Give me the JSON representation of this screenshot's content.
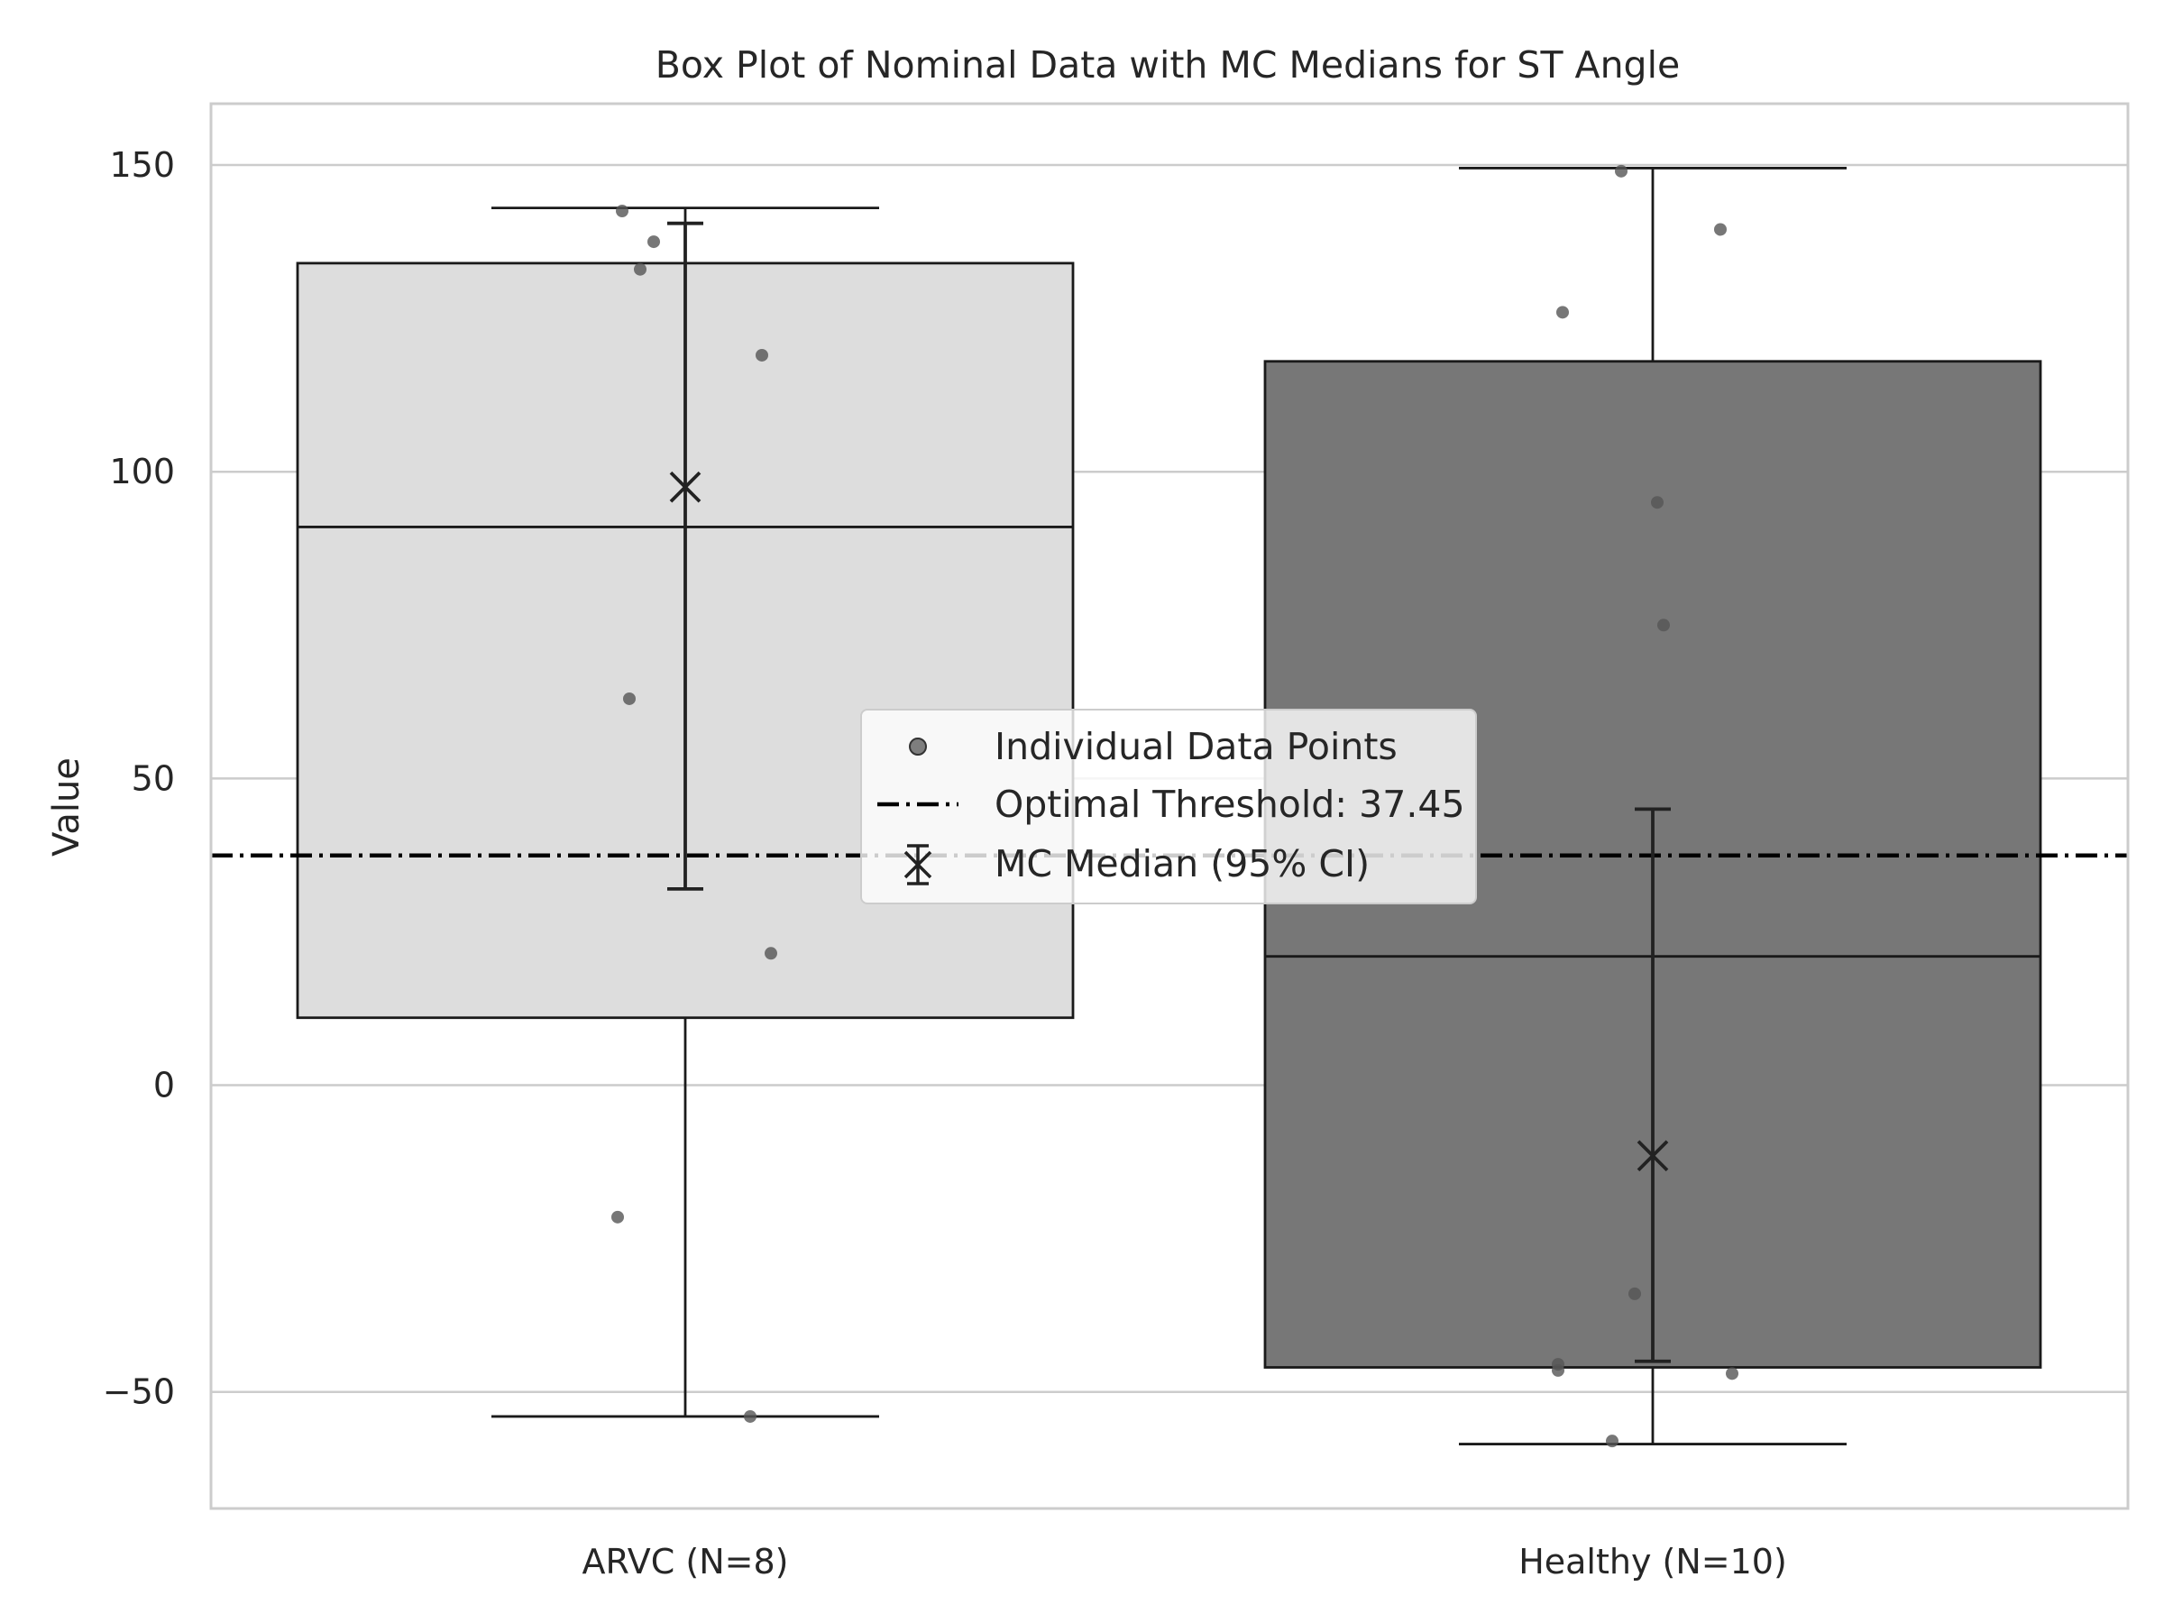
{
  "chart_data": {
    "type": "box",
    "title": "Box Plot of Nominal Data with MC Medians for ST Angle",
    "xlabel": "",
    "ylabel": "Value",
    "ylim": [
      -69,
      160
    ],
    "yticks": [
      -50,
      0,
      50,
      100,
      150
    ],
    "ytick_labels": [
      "−50",
      "0",
      "50",
      "100",
      "150"
    ],
    "grid": true,
    "legend_position": "center",
    "categories": [
      "ARVC (N=8)",
      "Healthy (N=10)"
    ],
    "boxes": [
      {
        "q1": 11,
        "median": 91,
        "q3": 134,
        "whisker_low": -54,
        "whisker_high": 143,
        "color": "#dddddd"
      },
      {
        "q1": -46,
        "median": 21,
        "q3": 118,
        "whisker_low": -58.5,
        "whisker_high": 149.5,
        "color": "#777777"
      }
    ],
    "points": [
      {
        "category": 0,
        "y": [
          142.5,
          137.5,
          133,
          119,
          63,
          21.5,
          -21.5,
          -54
        ]
      },
      {
        "category": 1,
        "y": [
          149,
          139.5,
          126,
          95,
          75,
          -34,
          -45.5,
          -46.5,
          -47,
          -58
        ]
      }
    ],
    "mc_medians": [
      {
        "category": 0,
        "median": 97.5,
        "ci_low": 32,
        "ci_high": 140.5
      },
      {
        "category": 1,
        "median": -11.5,
        "ci_low": -45,
        "ci_high": 45
      }
    ],
    "threshold": {
      "value": 37.45
    },
    "legend": [
      {
        "label": "Individual Data Points",
        "marker": "circle"
      },
      {
        "label": "Optimal Threshold: 37.45",
        "marker": "dashdot"
      },
      {
        "label": "MC Median (95% CI)",
        "marker": "x-errorbar"
      }
    ],
    "colors": {
      "grid": "#cccccc",
      "frame": "#cccccc",
      "box_edge": "#1a1a1a",
      "point": "#555555",
      "threshold": "#000000",
      "mc": "#222222"
    }
  }
}
